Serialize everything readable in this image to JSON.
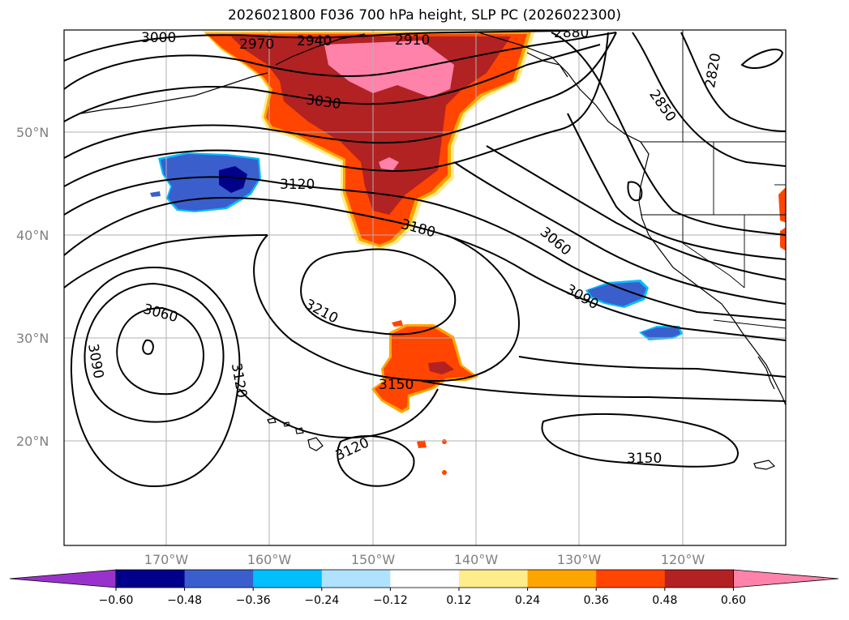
{
  "title": "2026021800 F036 700 hPa height, SLP PC (2026022300)",
  "map": {
    "lat_labels": [
      "50°N",
      "40°N",
      "30°N",
      "20°N"
    ],
    "lon_labels": [
      "170°W",
      "160°W",
      "150°W",
      "140°W",
      "130°W",
      "120°W"
    ],
    "contour_labels": [
      "3000",
      "2970",
      "2940",
      "2910",
      "2880",
      "2820",
      "2850",
      "3030",
      "3120",
      "3180",
      "3060",
      "3090",
      "3210",
      "3060",
      "3090",
      "3120",
      "3150",
      "3120",
      "3150"
    ]
  },
  "colorbar": {
    "ticks": [
      "−0.60",
      "−0.48",
      "−0.36",
      "−0.24",
      "−0.12",
      "0.12",
      "0.24",
      "0.36",
      "0.48",
      "0.60"
    ],
    "colors": [
      "#9932cc",
      "#00008b",
      "#3a5fcd",
      "#00bfff",
      "#b0e2ff",
      "#ffffff",
      "#ffec8b",
      "#ffa500",
      "#ff4500",
      "#b22222",
      "#ff82ab"
    ]
  },
  "colors": {
    "positive_light": "#ffa500",
    "positive_mid": "#ff4500",
    "positive_strong": "#b22222",
    "positive_max": "#ff82ab",
    "negative_mid": "#3a5fcd",
    "negative_strong": "#00008b",
    "negative_light": "#00bfff"
  }
}
